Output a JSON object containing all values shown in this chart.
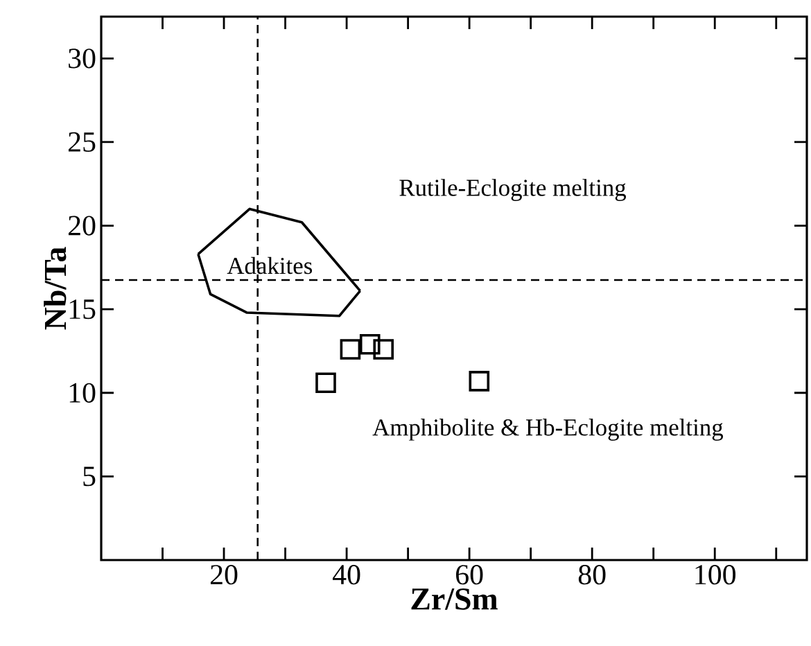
{
  "chart_data": {
    "type": "scatter",
    "xlabel": "Zr/Sm",
    "ylabel": "Nb/Ta",
    "xlim": [
      0,
      115
    ],
    "ylim": [
      0,
      32.5
    ],
    "xticks": [
      {
        "value": 10,
        "label": null
      },
      20,
      {
        "value": 30,
        "label": null
      },
      40,
      {
        "value": 50,
        "label": null
      },
      60,
      {
        "value": 70,
        "label": null
      },
      80,
      {
        "value": 90,
        "label": null
      },
      100,
      {
        "value": 110,
        "label": null
      }
    ],
    "yticks": [
      5,
      10,
      15,
      20,
      25,
      30
    ],
    "grid": false,
    "series": [
      {
        "type": "line",
        "color": "#000000",
        "marker": "none",
        "line_style": "solid",
        "x": [
          15.8,
          24.2,
          32.7,
          42.2
        ],
        "values": [
          18.3,
          21.0,
          20.2,
          16.1
        ]
      },
      {
        "type": "line",
        "color": "#000000",
        "marker": "none",
        "line_style": "solid",
        "x": [
          15.8,
          17.8,
          23.7,
          38.8,
          42.2
        ],
        "values": [
          18.3,
          15.9,
          14.8,
          14.6,
          16.1
        ]
      },
      {
        "color": "#000000",
        "marker": "square",
        "x": [
          36.6,
          40.6,
          43.8,
          46.0,
          61.6
        ],
        "values": [
          10.6,
          12.6,
          12.9,
          12.6,
          10.7
        ]
      }
    ],
    "ref_lines": [
      {
        "axis": "x",
        "value": 25.5,
        "line_style": "dashed"
      },
      {
        "axis": "y",
        "value": 16.75,
        "line_style": "dashed"
      }
    ],
    "annotations": [
      "Adakites",
      "Rutile-Eclogite melting",
      "Amphibolite & Hb-Eclogite melting"
    ]
  }
}
